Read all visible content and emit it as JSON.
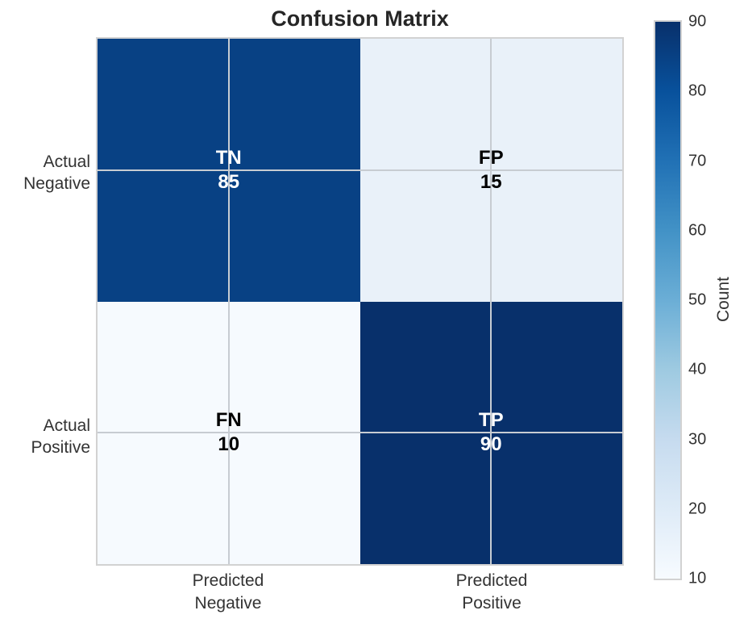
{
  "chart_data": {
    "type": "heatmap",
    "title": "Confusion Matrix",
    "x_axis": {
      "tick_labels": [
        "Predicted\nNegative",
        "Predicted\nPositive"
      ]
    },
    "y_axis": {
      "tick_labels": [
        "Actual\nNegative",
        "Actual\nPositive"
      ]
    },
    "cells": [
      {
        "id": "tn",
        "row": 0,
        "col": 0,
        "label": "TN",
        "value": "85",
        "bg": "#084184",
        "text_color": "#ffffff"
      },
      {
        "id": "fp",
        "row": 0,
        "col": 1,
        "label": "FP",
        "value": "15",
        "bg": "#e9f1f9",
        "text_color": "#000000"
      },
      {
        "id": "fn",
        "row": 1,
        "col": 0,
        "label": "FN",
        "value": "10",
        "bg": "#f6fafe",
        "text_color": "#000000"
      },
      {
        "id": "tp",
        "row": 1,
        "col": 1,
        "label": "TP",
        "value": "90",
        "bg": "#08306b",
        "text_color": "#ffffff"
      }
    ],
    "grid": {
      "on": true,
      "color": "#c7ccd2"
    },
    "colorbar": {
      "label": "Count",
      "vmin": 10,
      "vmax": 90,
      "ticks": [
        "10",
        "20",
        "30",
        "40",
        "50",
        "60",
        "70",
        "80",
        "90"
      ],
      "colormap": "Blues",
      "gradient_stops": [
        "#f7fbff",
        "#deebf7",
        "#c6dbef",
        "#9ecae1",
        "#6baed6",
        "#4292c6",
        "#2171b5",
        "#08519c",
        "#08306b"
      ]
    },
    "legend": {
      "position": "right-colorbar"
    }
  }
}
